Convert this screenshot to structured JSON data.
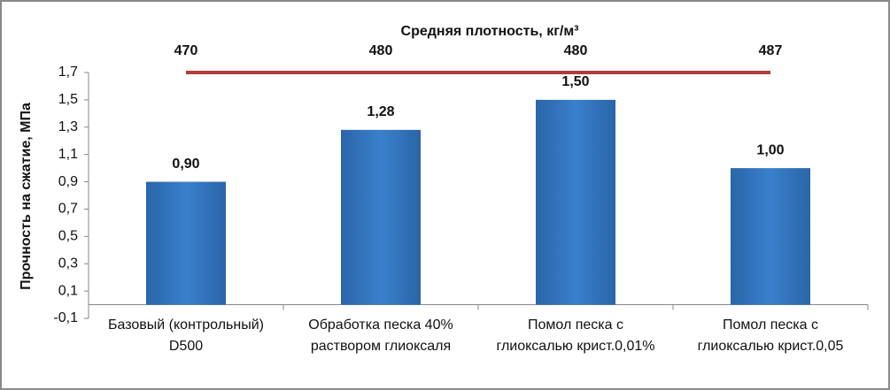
{
  "chart_data": {
    "type": "bar",
    "title": "Средняя плотность, кг/м³",
    "density_values": [
      470,
      480,
      480,
      487
    ],
    "density_color": "#b23b3b",
    "y_label": "Прочность на сжатие, МПа",
    "categories": [
      "Базовый (контрольный)\nD500",
      "Обработка песка 40%\nраствором глиоксаля",
      "Помол песка с\nглиоксалью крист.0,01%",
      "Помол песка с\nглиоксалью крист.0,05"
    ],
    "values": [
      0.9,
      1.28,
      1.5,
      1.0
    ],
    "value_labels": [
      "0,90",
      "1,28",
      "1,50",
      "1,00"
    ],
    "color": "#2f73bd",
    "ylim": [
      -0.1,
      1.7
    ],
    "yticks": [
      {
        "value": -0.1,
        "label": "-0,1"
      },
      {
        "value": 0.1,
        "label": "0,1"
      },
      {
        "value": 0.3,
        "label": "0,3"
      },
      {
        "value": 0.5,
        "label": "0,5"
      },
      {
        "value": 0.7,
        "label": "0,7"
      },
      {
        "value": 0.9,
        "label": "0,9"
      },
      {
        "value": 1.1,
        "label": "1,1"
      },
      {
        "value": 1.3,
        "label": "1,3"
      },
      {
        "value": 1.5,
        "label": "1,5"
      },
      {
        "value": 1.7,
        "label": "1,7"
      }
    ],
    "grid": false
  }
}
